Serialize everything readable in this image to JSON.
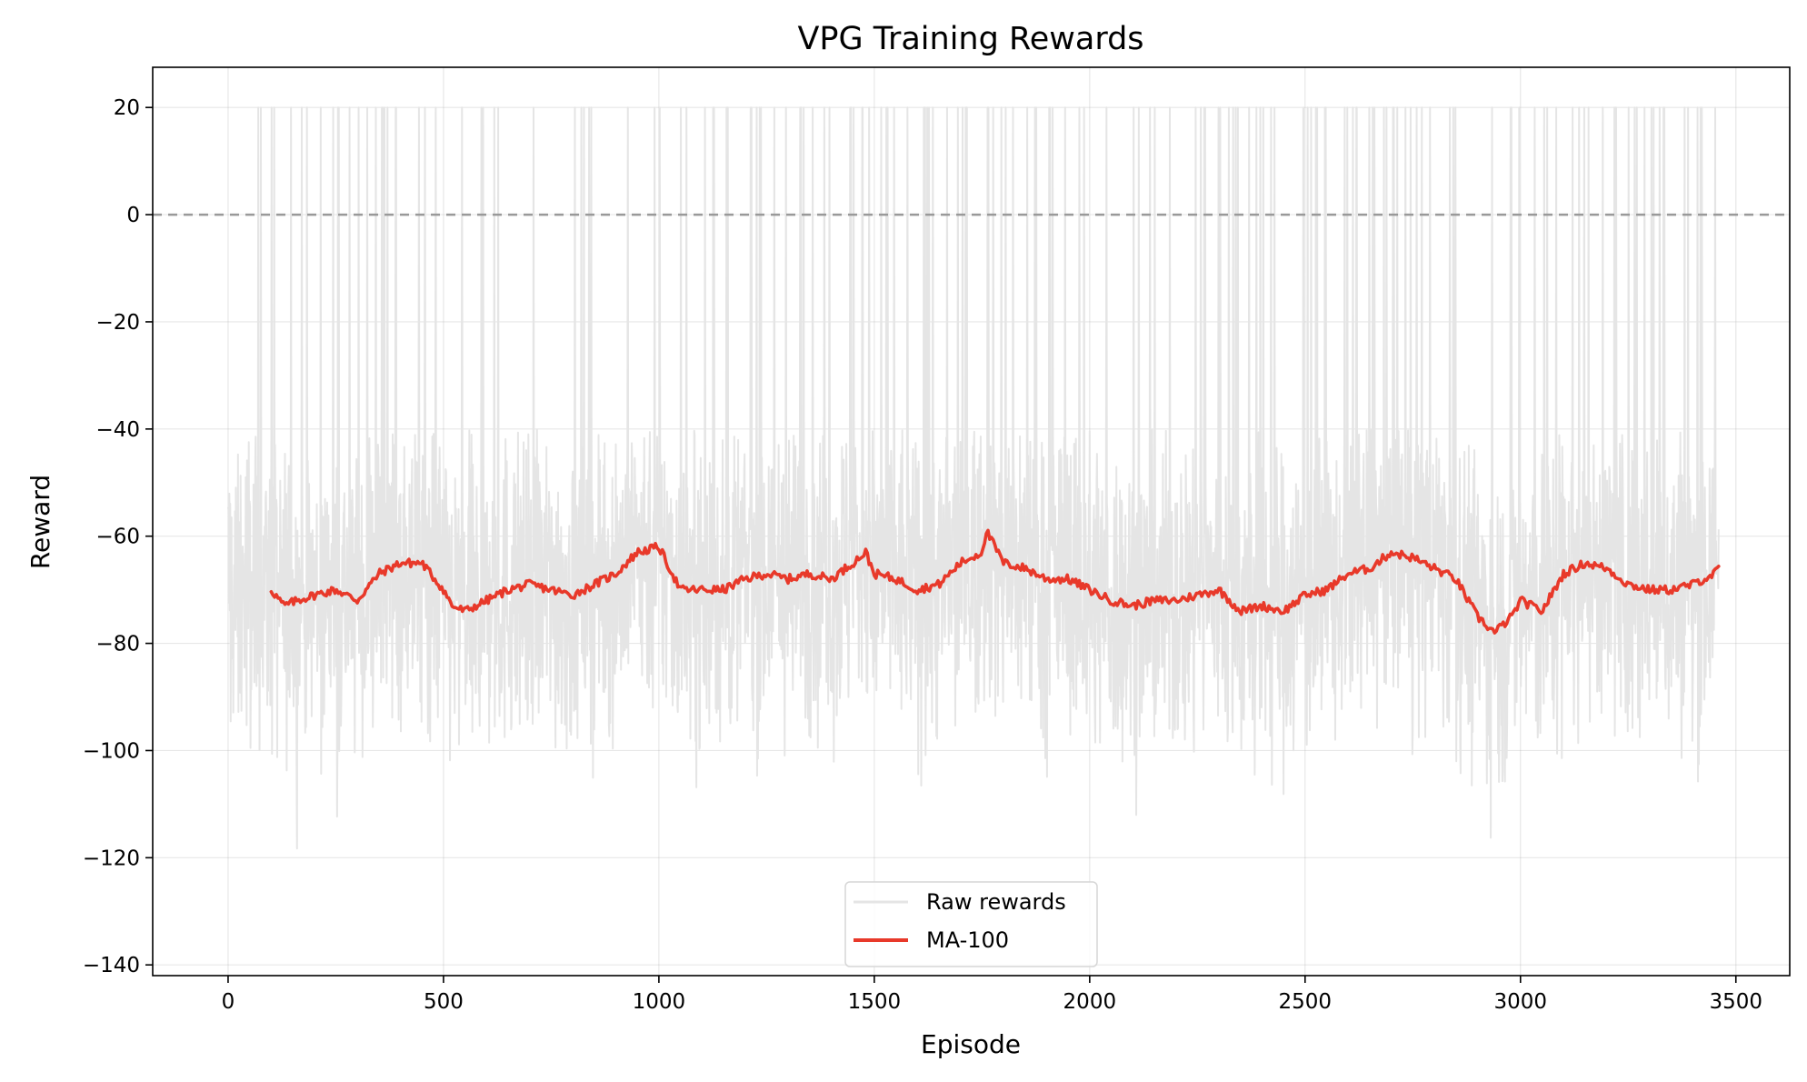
{
  "chart_data": {
    "type": "line",
    "title": "VPG Training Rewards",
    "xlabel": "Episode",
    "ylabel": "Reward",
    "xlim": [
      -175,
      3625
    ],
    "ylim": [
      -142,
      27.5
    ],
    "xticks": [
      0,
      500,
      1000,
      1500,
      2000,
      2500,
      3000,
      3500
    ],
    "yticks": [
      20,
      0,
      -20,
      -40,
      -60,
      -80,
      -100,
      -120,
      -140
    ],
    "xtick_labels": [
      "0",
      "500",
      "1000",
      "1500",
      "2000",
      "2500",
      "3000",
      "3500"
    ],
    "ytick_labels": [
      "20",
      "0",
      "−20",
      "−40",
      "−60",
      "−80",
      "−100",
      "−120",
      "−140"
    ],
    "grid": true,
    "legend_position": "lower-center",
    "reference_line": {
      "y": 0,
      "style": "dashed",
      "color": "#999999"
    },
    "series": [
      {
        "name": "Raw rewards",
        "color": "#e5e5e5",
        "episodes": [
          0,
          3460
        ],
        "summary": {
          "min": -134,
          "max": 20,
          "typical_low": -115,
          "typical_high": -45,
          "mean": -70
        },
        "values_note_episodes": [
          0,
          50,
          100,
          150,
          200,
          250,
          300,
          350,
          400,
          450,
          500,
          550,
          600,
          650,
          700,
          750,
          800,
          850,
          900,
          950,
          1000
        ]
      },
      {
        "name": "MA-100",
        "color": "#e8392a",
        "x": [
          100,
          130,
          160,
          200,
          250,
          300,
          350,
          400,
          450,
          500,
          520,
          550,
          600,
          650,
          700,
          750,
          800,
          850,
          900,
          950,
          1000,
          1050,
          1100,
          1150,
          1200,
          1250,
          1300,
          1350,
          1400,
          1450,
          1480,
          1500,
          1550,
          1600,
          1650,
          1700,
          1750,
          1760,
          1800,
          1850,
          1900,
          1950,
          2000,
          2050,
          2100,
          2150,
          2200,
          2250,
          2300,
          2350,
          2400,
          2450,
          2500,
          2550,
          2600,
          2650,
          2700,
          2750,
          2800,
          2850,
          2900,
          2940,
          2980,
          3000,
          3050,
          3100,
          3150,
          3200,
          3250,
          3300,
          3350,
          3400,
          3450,
          3460
        ],
        "y": [
          -70,
          -73,
          -72,
          -71,
          -70,
          -72,
          -67,
          -65,
          -65,
          -70,
          -73,
          -74,
          -72,
          -70,
          -69,
          -70,
          -71,
          -69,
          -67,
          -63,
          -62,
          -70,
          -70,
          -70,
          -68,
          -67,
          -68,
          -67,
          -68,
          -65,
          -63,
          -67,
          -68,
          -70,
          -69,
          -65,
          -63,
          -59,
          -65,
          -66,
          -68,
          -68,
          -70,
          -72,
          -73,
          -72,
          -72,
          -71,
          -70,
          -74,
          -73,
          -74,
          -71,
          -70,
          -67,
          -66,
          -63,
          -64,
          -66,
          -68,
          -75,
          -78,
          -75,
          -72,
          -74,
          -67,
          -65,
          -66,
          -69,
          -70,
          -70,
          -69,
          -67,
          -66
        ]
      }
    ]
  }
}
